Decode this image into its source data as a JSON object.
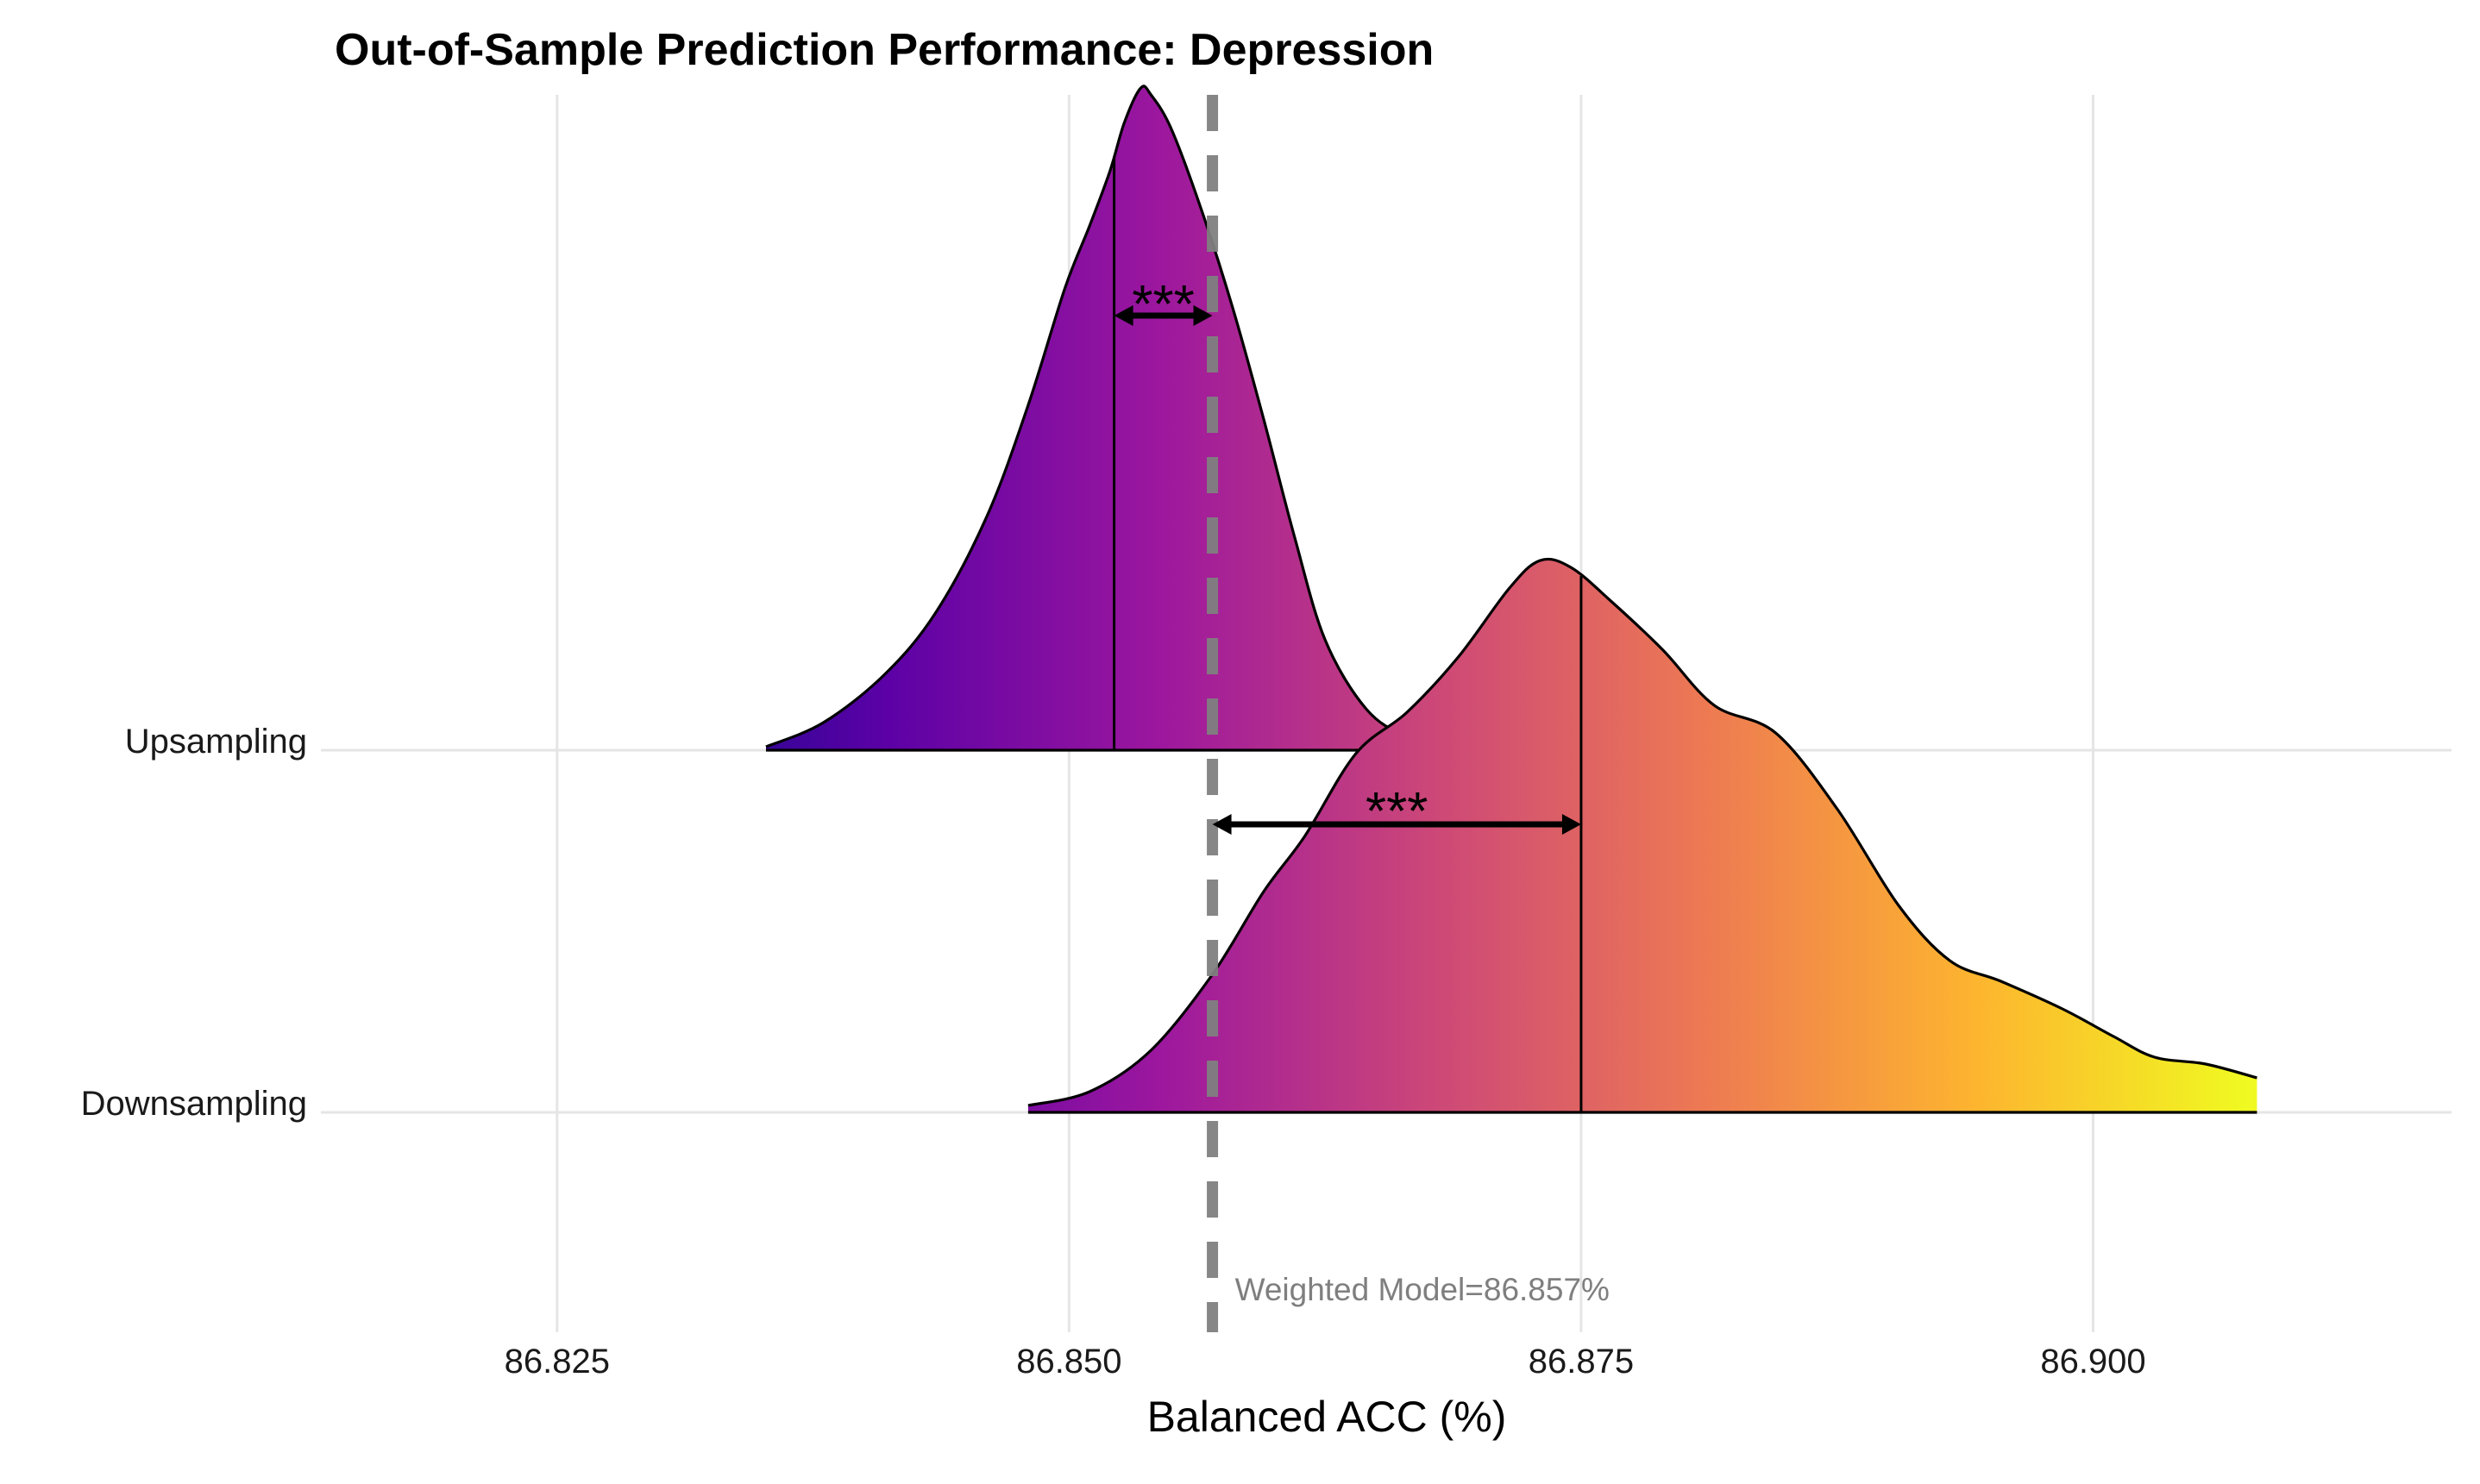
{
  "chart_data": {
    "type": "ridgeline",
    "title": "Out-of-Sample Prediction Performance: Depression",
    "xlabel": "Balanced ACC (%)",
    "ylabel": "",
    "xlim": [
      86.8165,
      86.9175
    ],
    "x_ticks": [
      "86.825",
      "86.850",
      "86.875",
      "86.900"
    ],
    "x_tick_values": [
      86.825,
      86.85,
      86.875,
      86.9
    ],
    "grid": true,
    "legend": "none",
    "categories": [
      "Upsampling",
      "Downsampling"
    ],
    "series": [
      {
        "name": "Upsampling",
        "median": 86.8522,
        "density": [
          [
            86.8352,
            0.005
          ],
          [
            86.838,
            0.04
          ],
          [
            86.841,
            0.11
          ],
          [
            86.8435,
            0.2
          ],
          [
            86.846,
            0.34
          ],
          [
            86.848,
            0.5
          ],
          [
            86.8498,
            0.67
          ],
          [
            86.851,
            0.76
          ],
          [
            86.852,
            0.84
          ],
          [
            86.8527,
            0.91
          ],
          [
            86.8535,
            0.96
          ],
          [
            86.854,
            0.95
          ],
          [
            86.855,
            0.9
          ],
          [
            86.8565,
            0.78
          ],
          [
            86.858,
            0.64
          ],
          [
            86.8595,
            0.48
          ],
          [
            86.861,
            0.31
          ],
          [
            86.8625,
            0.16
          ],
          [
            86.8645,
            0.06
          ],
          [
            86.8665,
            0.02
          ],
          [
            86.8688,
            0.005
          ]
        ]
      },
      {
        "name": "Downsampling",
        "median": 86.875,
        "density": [
          [
            86.848,
            0.01
          ],
          [
            86.851,
            0.03
          ],
          [
            86.854,
            0.09
          ],
          [
            86.857,
            0.2
          ],
          [
            86.8595,
            0.32
          ],
          [
            86.8615,
            0.4
          ],
          [
            86.864,
            0.52
          ],
          [
            86.8665,
            0.58
          ],
          [
            86.869,
            0.66
          ],
          [
            86.8715,
            0.76
          ],
          [
            86.873,
            0.8
          ],
          [
            86.8745,
            0.79
          ],
          [
            86.8765,
            0.74
          ],
          [
            86.879,
            0.67
          ],
          [
            86.8815,
            0.59
          ],
          [
            86.8845,
            0.55
          ],
          [
            86.8875,
            0.44
          ],
          [
            86.8905,
            0.3
          ],
          [
            86.893,
            0.22
          ],
          [
            86.8955,
            0.19
          ],
          [
            86.8985,
            0.15
          ],
          [
            86.901,
            0.11
          ],
          [
            86.903,
            0.08
          ],
          [
            86.9055,
            0.07
          ],
          [
            86.908,
            0.05
          ]
        ]
      }
    ],
    "reference_line": {
      "value": 86.857,
      "label": "Weighted Model=86.857%",
      "style": "dashed",
      "color": "#7f7f7f"
    },
    "comparisons": [
      {
        "series": "Upsampling",
        "from": 86.8522,
        "to": 86.857,
        "label": "***"
      },
      {
        "series": "Downsampling",
        "from": 86.857,
        "to": 86.875,
        "label": "***"
      }
    ],
    "fill_colormap": [
      "#0d0887",
      "#5c01a6",
      "#9c179e",
      "#cc4778",
      "#ed7953",
      "#fdb42f",
      "#f0f921"
    ]
  }
}
